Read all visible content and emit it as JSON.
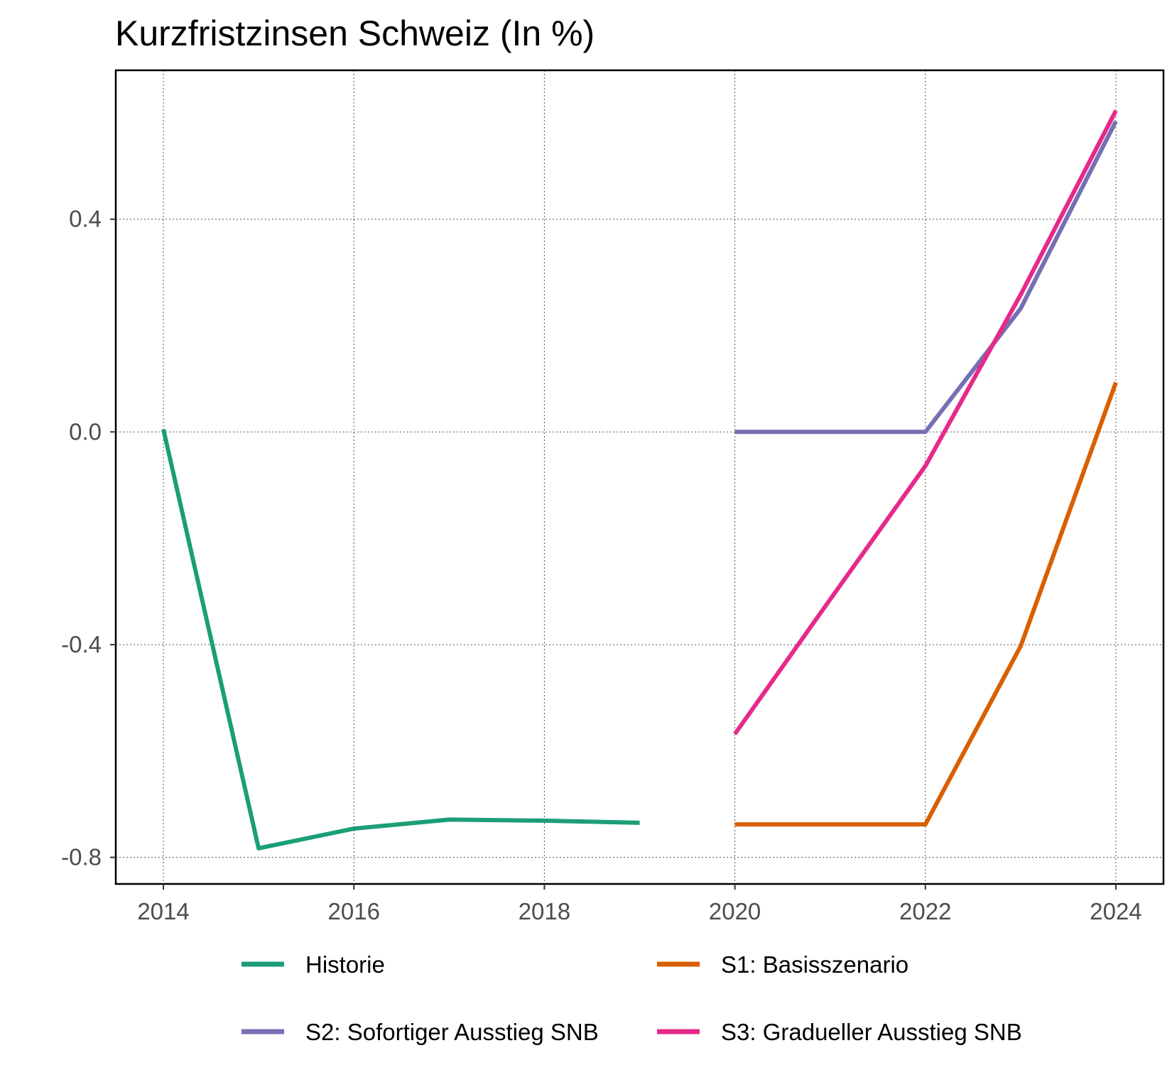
{
  "chart_data": {
    "type": "line",
    "title": "Kurzfristzinsen Schweiz (In %)",
    "xlabel": "",
    "ylabel": "",
    "xlim": [
      2013.5,
      2024.5
    ],
    "ylim": [
      -0.85,
      0.68
    ],
    "x_ticks": [
      2014,
      2016,
      2018,
      2020,
      2022,
      2024
    ],
    "y_ticks": [
      -0.8,
      -0.4,
      0.0,
      0.4
    ],
    "y_tick_labels": [
      "-0.8",
      "-0.4",
      "0.0",
      "0.4"
    ],
    "grid": true,
    "legend_position": "bottom",
    "series": [
      {
        "name": "Historie",
        "color": "#1b9e77",
        "x": [
          2014,
          2015,
          2016,
          2017,
          2018,
          2019
        ],
        "y": [
          0.005,
          -0.783,
          -0.746,
          -0.729,
          -0.731,
          -0.735
        ]
      },
      {
        "name": "S1: Basisszenario",
        "color": "#d95f02",
        "x": [
          2020,
          2021,
          2022,
          2023,
          2024
        ],
        "y": [
          -0.738,
          -0.738,
          -0.738,
          -0.403,
          0.093
        ]
      },
      {
        "name": "S2: Sofortiger Ausstieg SNB",
        "color": "#7570b3",
        "x": [
          2020,
          2021,
          2022,
          2023,
          2024
        ],
        "y": [
          0.0,
          0.0,
          0.0,
          0.232,
          0.584
        ]
      },
      {
        "name": "S3: Gradueller Ausstieg SNB",
        "color": "#e7298a",
        "x": [
          2020,
          2021,
          2022,
          2023,
          2024
        ],
        "y": [
          -0.568,
          -0.315,
          -0.064,
          0.258,
          0.604
        ]
      }
    ]
  }
}
